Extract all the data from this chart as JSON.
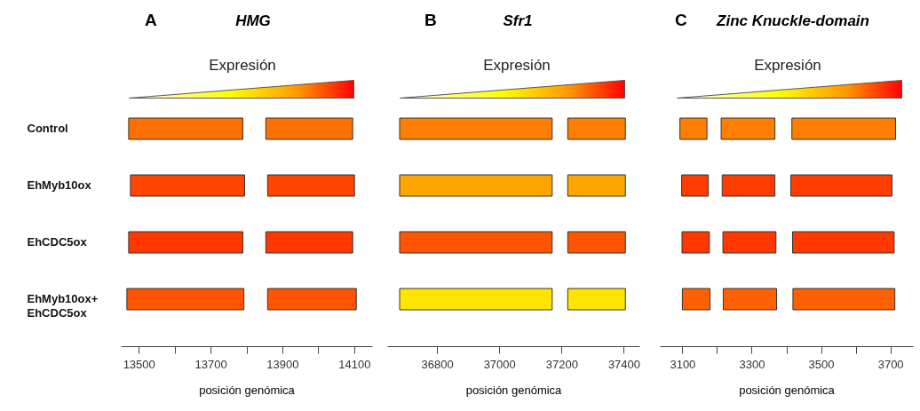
{
  "chart_data": [
    {
      "type": "bar",
      "orientation": "horizontal",
      "title": "HMG",
      "xlabel": "posición genómica",
      "annotations": [
        "A",
        "Expresión"
      ],
      "categories": [
        "Control",
        "EhMyb10ox",
        "EhCDC5ox",
        "EhMyb10ox+\nEhCDC5ox"
      ],
      "xlim": [
        13450,
        14150
      ],
      "xticks": [
        13500,
        {
          "value": 13600,
          "label": null
        },
        13700,
        {
          "value": 13800,
          "label": null
        },
        13900,
        {
          "value": 14000,
          "label": null
        },
        14100
      ],
      "series": [
        {
          "base": [
            13472,
            13477,
            13472,
            13467
          ],
          "values": [
            318,
            318,
            318,
            326
          ],
          "colors": [
            "#ff7000",
            "#ff4400",
            "#ff3800",
            "#ff5500"
          ]
        },
        {
          "base": [
            13854,
            13859,
            13854,
            13859
          ],
          "values": [
            242,
            242,
            242,
            247
          ],
          "colors": [
            "#ff7000",
            "#ff4400",
            "#ff3800",
            "#ff5500"
          ]
        }
      ]
    },
    {
      "type": "bar",
      "orientation": "horizontal",
      "title": "Sfr1",
      "xlabel": "posición genómica",
      "annotations": [
        "B",
        "Expresión"
      ],
      "categories": [
        null,
        null,
        null,
        null
      ],
      "xlim": [
        36640,
        37450
      ],
      "xticks": [
        36800,
        37000,
        37200,
        37400
      ],
      "series": [
        {
          "base": [
            36680,
            36680,
            36680,
            36680
          ],
          "values": [
            490,
            490,
            490,
            490
          ],
          "colors": [
            "#ff8000",
            "#ffa500",
            "#ff5500",
            "#ffe500"
          ]
        },
        {
          "base": [
            37220,
            37220,
            37220,
            37220
          ],
          "values": [
            185,
            185,
            185,
            185
          ],
          "colors": [
            "#ff8000",
            "#ffa500",
            "#ff5500",
            "#ffe500"
          ]
        }
      ]
    },
    {
      "type": "bar",
      "orientation": "horizontal",
      "title": "Zinc Knuckle-domain",
      "xlabel": "posición genómica",
      "annotations": [
        "C",
        "Expresión"
      ],
      "categories": [
        null,
        null,
        null,
        null
      ],
      "xlim": [
        3035,
        3765
      ],
      "xticks": [
        3100,
        {
          "value": 3200,
          "label": null
        },
        3300,
        {
          "value": 3400,
          "label": null
        },
        3500,
        {
          "value": 3600,
          "label": null
        },
        3700
      ],
      "series": [
        {
          "base": [
            3093,
            3098,
            3099,
            3100
          ],
          "values": [
            78,
            77,
            79,
            80
          ],
          "colors": [
            "#ff8000",
            "#ff3c00",
            "#ff3800",
            "#ff6000"
          ]
        },
        {
          "base": [
            3212,
            3215,
            3217,
            3218
          ],
          "values": [
            155,
            152,
            153,
            154
          ],
          "colors": [
            "#ff8000",
            "#ff3c00",
            "#ff3800",
            "#ff6000"
          ]
        },
        {
          "base": [
            3416,
            3413,
            3418,
            3419
          ],
          "values": [
            299,
            292,
            293,
            294
          ],
          "colors": [
            "#ff8000",
            "#ff3c00",
            "#ff3800",
            "#ff6000"
          ]
        }
      ]
    }
  ]
}
